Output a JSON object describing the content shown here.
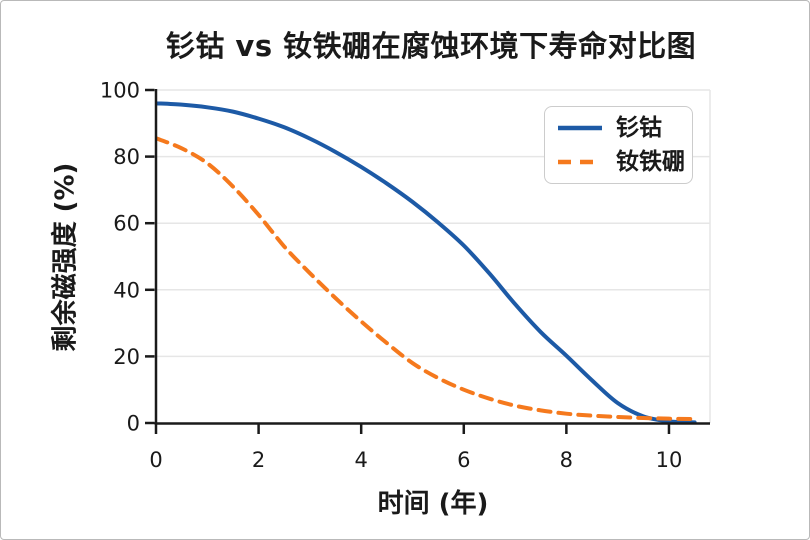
{
  "figure": {
    "background": "#ffffff",
    "border_color": "#b9b9b9",
    "text_color": "#1a1a1a",
    "grid_color": "#e6e6e6",
    "spine_color": "#1a1a1a",
    "legend_border_color": "#cccccc"
  },
  "chart_data": {
    "type": "line",
    "title": "钐钴 vs 钕铁硼在腐蚀环境下寿命对比图",
    "xlabel": "时间 (年)",
    "ylabel": "剩余磁强度 (%)",
    "xlim": [
      0,
      10.8
    ],
    "ylim": [
      0,
      100
    ],
    "x_ticks": [
      0,
      2,
      4,
      6,
      8,
      10
    ],
    "y_ticks": [
      0,
      20,
      40,
      60,
      80,
      100
    ],
    "grid": "horizontal-only",
    "legend_position": "upper-right",
    "x": [
      0,
      0.5,
      1,
      1.5,
      2,
      2.5,
      3,
      3.5,
      4,
      4.5,
      5,
      5.5,
      6,
      6.5,
      7,
      7.5,
      8,
      8.5,
      9,
      9.5,
      10,
      10.5
    ],
    "series": [
      {
        "name": "钐钴",
        "color": "#1d5aa6",
        "line_style": "solid",
        "values": [
          96.0,
          95.6,
          94.8,
          93.5,
          91.4,
          88.8,
          85.4,
          81.4,
          76.9,
          71.9,
          66.4,
          60.2,
          53.3,
          44.9,
          35.7,
          27.3,
          20.2,
          12.8,
          6.0,
          2.0,
          0.5,
          0.2
        ]
      },
      {
        "name": "钕铁硼",
        "color": "#f5791d",
        "line_style": "dashed",
        "values": [
          85.5,
          82.5,
          78.0,
          71.0,
          62.5,
          53.0,
          45.0,
          37.5,
          30.5,
          24.0,
          18.0,
          13.5,
          10.0,
          7.3,
          5.2,
          3.8,
          2.8,
          2.2,
          1.8,
          1.5,
          1.3,
          1.2
        ]
      }
    ]
  }
}
